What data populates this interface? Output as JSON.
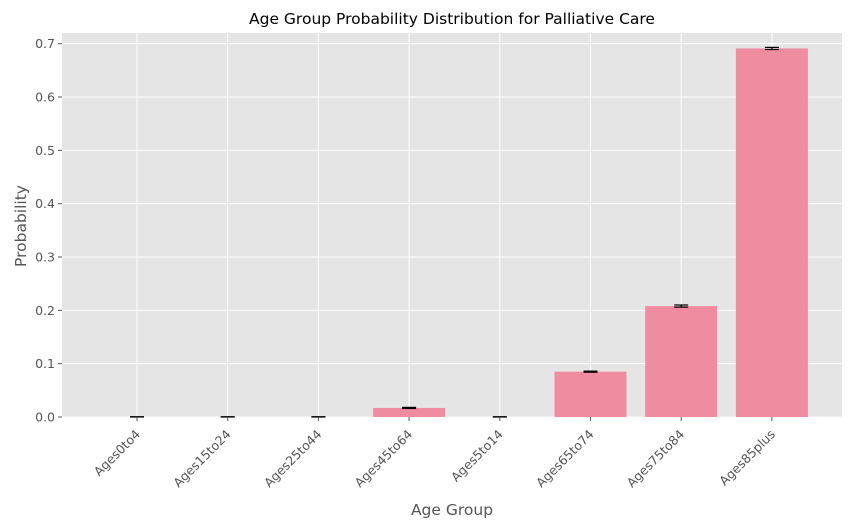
{
  "chart_data": {
    "type": "bar",
    "title": "Age Group Probability Distribution for Palliative Care",
    "xlabel": "Age Group",
    "ylabel": "Probability",
    "categories": [
      "Ages0to4",
      "Ages15to24",
      "Ages25to44",
      "Ages45to64",
      "Ages5to14",
      "Ages65to74",
      "Ages75to84",
      "Ages85plus"
    ],
    "values": [
      0.0,
      0.0,
      0.0,
      0.017,
      0.0,
      0.085,
      0.208,
      0.691
    ],
    "errors": [
      0.0005,
      0.0005,
      0.0005,
      0.001,
      0.0005,
      0.001,
      0.002,
      0.002
    ],
    "ylim": [
      0,
      0.72
    ],
    "yticks": [
      "0.0",
      "0.1",
      "0.2",
      "0.3",
      "0.4",
      "0.5",
      "0.6",
      "0.7"
    ],
    "grid": true,
    "colors": {
      "bar": "#f08ca0",
      "plot_background": "#e5e5e5",
      "grid": "#ffffff",
      "error_bar": "#000000"
    }
  }
}
